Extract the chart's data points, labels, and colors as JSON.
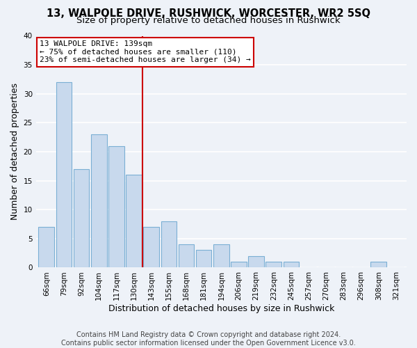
{
  "title": "13, WALPOLE DRIVE, RUSHWICK, WORCESTER, WR2 5SQ",
  "subtitle": "Size of property relative to detached houses in Rushwick",
  "xlabel": "Distribution of detached houses by size in Rushwick",
  "ylabel": "Number of detached properties",
  "bar_labels": [
    "66sqm",
    "79sqm",
    "92sqm",
    "104sqm",
    "117sqm",
    "130sqm",
    "143sqm",
    "155sqm",
    "168sqm",
    "181sqm",
    "194sqm",
    "206sqm",
    "219sqm",
    "232sqm",
    "245sqm",
    "257sqm",
    "270sqm",
    "283sqm",
    "296sqm",
    "308sqm",
    "321sqm"
  ],
  "bar_values": [
    7,
    32,
    17,
    23,
    21,
    16,
    7,
    8,
    4,
    3,
    4,
    1,
    2,
    1,
    1,
    0,
    0,
    0,
    0,
    1,
    0
  ],
  "bar_color": "#c8d9ed",
  "bar_edge_color": "#7aafd4",
  "annotation_title": "13 WALPOLE DRIVE: 139sqm",
  "annotation_line1": "← 75% of detached houses are smaller (110)",
  "annotation_line2": "23% of semi-detached houses are larger (34) →",
  "annotation_box_color": "#ffffff",
  "annotation_box_edge": "#cc0000",
  "highlight_line_color": "#cc0000",
  "highlight_bar_index": 6,
  "ylim": [
    0,
    40
  ],
  "yticks": [
    0,
    5,
    10,
    15,
    20,
    25,
    30,
    35,
    40
  ],
  "footer1": "Contains HM Land Registry data © Crown copyright and database right 2024.",
  "footer2": "Contains public sector information licensed under the Open Government Licence v3.0.",
  "bg_color": "#eef2f8",
  "grid_color": "#ffffff",
  "title_fontsize": 10.5,
  "subtitle_fontsize": 9.5,
  "axis_label_fontsize": 9,
  "tick_fontsize": 7.5,
  "footer_fontsize": 7
}
